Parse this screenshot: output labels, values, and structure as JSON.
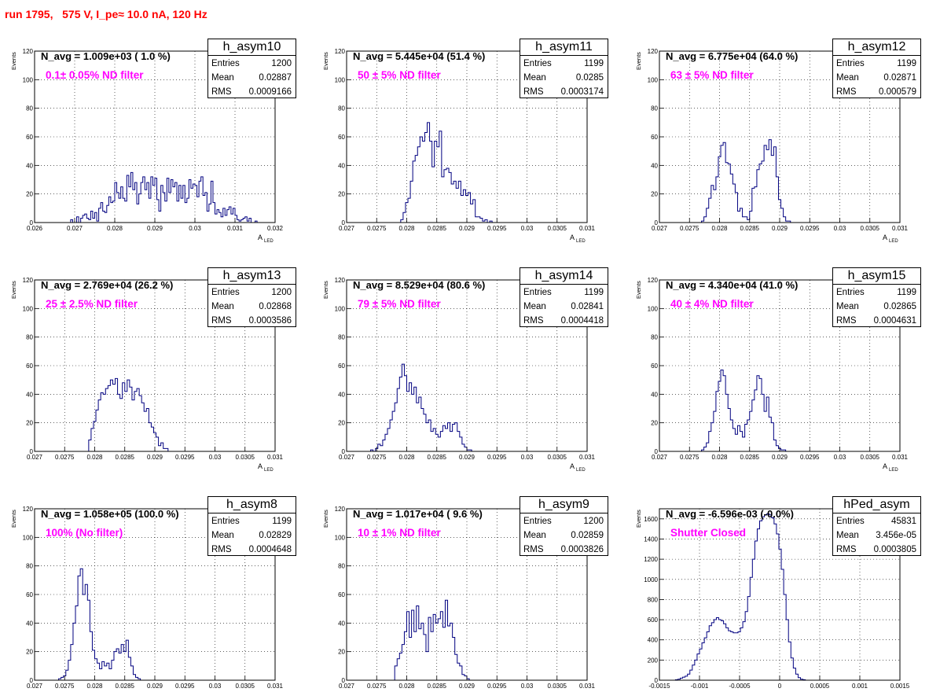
{
  "header": {
    "title": "run 1795,   575 V, I_pe≈ 10.0 nA, 120 Hz",
    "color": "#ff0000"
  },
  "axis_text": {
    "ylabel": "Events",
    "xlabel_main": "A",
    "xlabel_sub": "LED"
  },
  "colors": {
    "histogram": "#000080",
    "nlabel": "#000000",
    "filter_label": "#ff00ff",
    "grid": "#000000"
  },
  "stat_labels": {
    "entries": "Entries",
    "mean": "Mean",
    "rms": "RMS"
  },
  "chart_data": [
    {
      "type": "bar",
      "name": "h_asym10",
      "n_label": "N_avg = 1.009e+03 ( 1.0 %)",
      "filter_label": "0.1± 0.05% ND filter",
      "stats": {
        "entries": "1200",
        "mean": "0.02887",
        "rms": "0.0009166"
      },
      "xlim": [
        0.026,
        0.032
      ],
      "ylim": [
        0,
        120
      ],
      "xticks": [
        "0.026",
        "0.027",
        "0.028",
        "0.029",
        "0.03",
        "0.031",
        "0.032"
      ],
      "yticks": [
        "0",
        "20",
        "40",
        "60",
        "80",
        "100",
        "120"
      ],
      "bin_start": 0.0266,
      "bin_width": 5e-05,
      "values": [
        0,
        0,
        0,
        0,
        0,
        0,
        2,
        0,
        0,
        4,
        0,
        3,
        5,
        6,
        3,
        2,
        8,
        3,
        7,
        1,
        10,
        14,
        8,
        7,
        12,
        18,
        14,
        15,
        28,
        21,
        17,
        25,
        17,
        15,
        33,
        25,
        35,
        23,
        28,
        13,
        20,
        28,
        32,
        23,
        28,
        17,
        32,
        26,
        31,
        16,
        8,
        26,
        21,
        15,
        31,
        21,
        30,
        25,
        28,
        15,
        26,
        17,
        26,
        14,
        17,
        30,
        24,
        27,
        26,
        18,
        29,
        32,
        19,
        21,
        8,
        13,
        29,
        14,
        6,
        9,
        7,
        4,
        10,
        5,
        9,
        11,
        6,
        10,
        5,
        2,
        1,
        2,
        3,
        4,
        1,
        3,
        0,
        0,
        1,
        0
      ]
    },
    {
      "type": "bar",
      "name": "h_asym11",
      "n_label": "N_avg = 5.445e+04 (51.4 %)",
      "filter_label": "50 ± 5% ND filter",
      "stats": {
        "entries": "1199",
        "mean": "0.0285",
        "rms": "0.0003174"
      },
      "xlim": [
        0.027,
        0.031
      ],
      "ylim": [
        0,
        120
      ],
      "xticks": [
        "0.027",
        "0.0275",
        "0.028",
        "0.0285",
        "0.029",
        "0.0295",
        "0.03",
        "0.0305",
        "0.031"
      ],
      "yticks": [
        "0",
        "20",
        "40",
        "60",
        "80",
        "100",
        "120"
      ],
      "bin_start": 0.0279,
      "bin_width": 4e-05,
      "values": [
        2,
        7,
        14,
        17,
        29,
        43,
        47,
        53,
        60,
        57,
        63,
        70,
        57,
        39,
        57,
        53,
        64,
        32,
        37,
        38,
        35,
        27,
        29,
        24,
        29,
        19,
        23,
        19,
        21,
        13,
        16,
        4,
        4,
        3,
        1,
        2,
        0,
        1
      ]
    },
    {
      "type": "bar",
      "name": "h_asym12",
      "n_label": "N_avg = 6.775e+04 (64.0 %)",
      "filter_label": "63 ± 5% ND filter",
      "stats": {
        "entries": "1199",
        "mean": "0.02871",
        "rms": "0.000579"
      },
      "xlim": [
        0.027,
        0.031
      ],
      "ylim": [
        0,
        120
      ],
      "xticks": [
        "0.027",
        "0.0275",
        "0.028",
        "0.0285",
        "0.029",
        "0.0295",
        "0.03",
        "0.0305",
        "0.031"
      ],
      "yticks": [
        "0",
        "20",
        "40",
        "60",
        "80",
        "100",
        "120"
      ],
      "bin_start": 0.0277,
      "bin_width": 4e-05,
      "values": [
        1,
        4,
        10,
        17,
        26,
        23,
        32,
        46,
        54,
        56,
        42,
        41,
        34,
        27,
        21,
        8,
        10,
        4,
        4,
        2,
        8,
        24,
        25,
        37,
        41,
        43,
        54,
        51,
        58,
        47,
        53,
        32,
        16,
        10,
        4,
        1,
        1,
        0
      ]
    },
    {
      "type": "bar",
      "name": "h_asym13",
      "n_label": "N_avg = 2.769e+04 (26.2 %)",
      "filter_label": "25 ± 2.5% ND filter",
      "stats": {
        "entries": "1200",
        "mean": "0.02868",
        "rms": "0.0003586"
      },
      "xlim": [
        0.027,
        0.031
      ],
      "ylim": [
        0,
        120
      ],
      "xticks": [
        "0.027",
        "0.0275",
        "0.028",
        "0.0285",
        "0.029",
        "0.0295",
        "0.03",
        "0.0305",
        "0.031"
      ],
      "yticks": [
        "0",
        "20",
        "40",
        "60",
        "80",
        "100",
        "120"
      ],
      "bin_start": 0.0279,
      "bin_width": 4e-05,
      "values": [
        8,
        16,
        21,
        29,
        36,
        41,
        40,
        44,
        46,
        50,
        47,
        51,
        40,
        37,
        48,
        42,
        50,
        45,
        36,
        42,
        44,
        39,
        34,
        28,
        30,
        20,
        17,
        13,
        10,
        4,
        6,
        2,
        2,
        0
      ]
    },
    {
      "type": "bar",
      "name": "h_asym14",
      "n_label": "N_avg = 8.529e+04 (80.6 %)",
      "filter_label": "79 ± 5% ND filter",
      "stats": {
        "entries": "1199",
        "mean": "0.02841",
        "rms": "0.0004418"
      },
      "xlim": [
        0.027,
        0.031
      ],
      "ylim": [
        0,
        120
      ],
      "xticks": [
        "0.027",
        "0.0275",
        "0.028",
        "0.0285",
        "0.029",
        "0.0295",
        "0.03",
        "0.0305",
        "0.031"
      ],
      "yticks": [
        "0",
        "20",
        "40",
        "60",
        "80",
        "100",
        "120"
      ],
      "bin_start": 0.0274,
      "bin_width": 4e-05,
      "values": [
        1,
        0,
        2,
        5,
        4,
        8,
        12,
        16,
        22,
        28,
        34,
        44,
        52,
        61,
        53,
        42,
        48,
        40,
        45,
        34,
        38,
        30,
        26,
        20,
        22,
        14,
        16,
        12,
        10,
        14,
        18,
        16,
        20,
        14,
        19,
        20,
        14,
        10,
        5,
        3,
        1,
        1
      ]
    },
    {
      "type": "bar",
      "name": "h_asym15",
      "n_label": "N_avg = 4.340e+04 (41.0 %)",
      "filter_label": "40 ± 4% ND filter",
      "stats": {
        "entries": "1199",
        "mean": "0.02865",
        "rms": "0.0004631"
      },
      "xlim": [
        0.027,
        0.031
      ],
      "ylim": [
        0,
        120
      ],
      "xticks": [
        "0.027",
        "0.0275",
        "0.028",
        "0.0285",
        "0.029",
        "0.0295",
        "0.03",
        "0.0305",
        "0.031"
      ],
      "yticks": [
        "0",
        "20",
        "40",
        "60",
        "80",
        "100",
        "120"
      ],
      "bin_start": 0.0277,
      "bin_width": 4e-05,
      "values": [
        1,
        3,
        6,
        14,
        20,
        28,
        42,
        49,
        57,
        53,
        40,
        30,
        22,
        16,
        12,
        18,
        14,
        10,
        19,
        22,
        28,
        36,
        43,
        53,
        51,
        40,
        28,
        38,
        24,
        20,
        8,
        4,
        2,
        1,
        1,
        0
      ]
    },
    {
      "type": "bar",
      "name": "h_asym8",
      "n_label": "N_avg = 1.058e+05 (100.0 %)",
      "filter_label": "100% (No filter)",
      "stats": {
        "entries": "1199",
        "mean": "0.02829",
        "rms": "0.0004648"
      },
      "xlim": [
        0.027,
        0.031
      ],
      "ylim": [
        0,
        120
      ],
      "xticks": [
        "0.027",
        "0.0275",
        "0.028",
        "0.0285",
        "0.029",
        "0.0295",
        "0.03",
        "0.0305",
        "0.031"
      ],
      "yticks": [
        "0",
        "20",
        "40",
        "60",
        "80",
        "100",
        "120"
      ],
      "bin_start": 0.0274,
      "bin_width": 4e-05,
      "values": [
        1,
        2,
        3,
        7,
        14,
        25,
        40,
        52,
        73,
        78,
        60,
        67,
        56,
        34,
        21,
        15,
        12,
        8,
        13,
        10,
        12,
        8,
        14,
        20,
        22,
        19,
        25,
        20,
        28,
        16,
        10,
        4,
        2,
        1
      ]
    },
    {
      "type": "bar",
      "name": "h_asym9",
      "n_label": "N_avg = 1.017e+04 ( 9.6 %)",
      "filter_label": "10 ± 1% ND filter",
      "stats": {
        "entries": "1200",
        "mean": "0.02859",
        "rms": "0.0003826"
      },
      "xlim": [
        0.027,
        0.031
      ],
      "ylim": [
        0,
        120
      ],
      "xticks": [
        "0.027",
        "0.0275",
        "0.028",
        "0.0285",
        "0.029",
        "0.0295",
        "0.03",
        "0.0305",
        "0.031"
      ],
      "yticks": [
        "0",
        "20",
        "40",
        "60",
        "80",
        "100",
        "120"
      ],
      "bin_start": 0.0278,
      "bin_width": 4e-05,
      "values": [
        10,
        15,
        19,
        25,
        34,
        48,
        30,
        49,
        34,
        52,
        36,
        40,
        32,
        20,
        44,
        34,
        46,
        40,
        43,
        48,
        37,
        56,
        38,
        40,
        30,
        18,
        12,
        10,
        4,
        3,
        1,
        0
      ]
    },
    {
      "type": "bar",
      "name": "hPed_asym",
      "n_label": "N_avg = -6.596e-03 (-0.0%)",
      "filter_label": "Shutter Closed",
      "stats": {
        "entries": "45831",
        "mean": "3.456e-05",
        "rms": "0.0003805"
      },
      "xlim": [
        -0.0015,
        0.0015
      ],
      "ylim": [
        0,
        1700
      ],
      "xticks": [
        "-0.0015",
        "-0.001",
        "-0.0005",
        "0",
        "0.0005",
        "0.001",
        "0.0015"
      ],
      "yticks": [
        "0",
        "200",
        "400",
        "600",
        "800",
        "1000",
        "1200",
        "1400",
        "1600"
      ],
      "bin_start": -0.0013,
      "bin_width": 3e-05,
      "values": [
        5,
        10,
        20,
        30,
        40,
        60,
        100,
        150,
        200,
        260,
        310,
        370,
        420,
        480,
        540,
        570,
        600,
        620,
        600,
        590,
        560,
        520,
        490,
        480,
        470,
        470,
        480,
        520,
        580,
        680,
        830,
        1020,
        1200,
        1380,
        1500,
        1580,
        1620,
        1640,
        1650,
        1640,
        1610,
        1550,
        1450,
        1300,
        1100,
        850,
        600,
        380,
        220,
        120,
        60,
        25,
        10,
        5
      ]
    }
  ]
}
